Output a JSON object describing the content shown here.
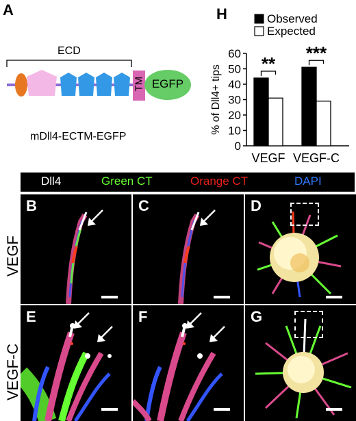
{
  "panel_a": {
    "letter": "A",
    "ecd_label": "ECD",
    "tm_label": "TM",
    "egfp_label": "EGFP",
    "construct_name": "mDll4-ECTM-EGFP",
    "colors": {
      "orange": "#e87722",
      "pink": "#f4b8e6",
      "blue": "#3399e6",
      "purple": "#8c6bd6",
      "tm": "#d966b3",
      "egfp": "#66cc66"
    }
  },
  "panel_h": {
    "letter": "H",
    "legend_observed": "Observed",
    "legend_expected": "Expected",
    "significance": [
      "**",
      "***"
    ]
  },
  "chart_data": {
    "type": "bar",
    "categories": [
      "VEGF",
      "VEGF-C"
    ],
    "series": [
      {
        "name": "Observed",
        "values": [
          44,
          51
        ],
        "color": "#000000"
      },
      {
        "name": "Expected",
        "values": [
          31,
          29
        ],
        "color": "#ffffff"
      }
    ],
    "ylabel": "% of Dll4+ tips",
    "ylim": [
      0,
      60
    ],
    "yticks": [
      "0",
      "10",
      "20",
      "30",
      "40",
      "50",
      "60"
    ],
    "legend": "top-right",
    "grid": false
  },
  "channel_legend": [
    {
      "label": "Dll4",
      "color": "#ffffff"
    },
    {
      "label": "Green CT",
      "color": "#66ff33"
    },
    {
      "label": "Orange CT",
      "color": "#e8201a"
    },
    {
      "label": "DAPI",
      "color": "#3377ff"
    }
  ],
  "row_labels": {
    "top": "VEGF",
    "bottom": "VEGF-C"
  },
  "micrographs": {
    "B": "B",
    "C": "C",
    "D": "D",
    "E": "E",
    "F": "F",
    "G": "G"
  }
}
